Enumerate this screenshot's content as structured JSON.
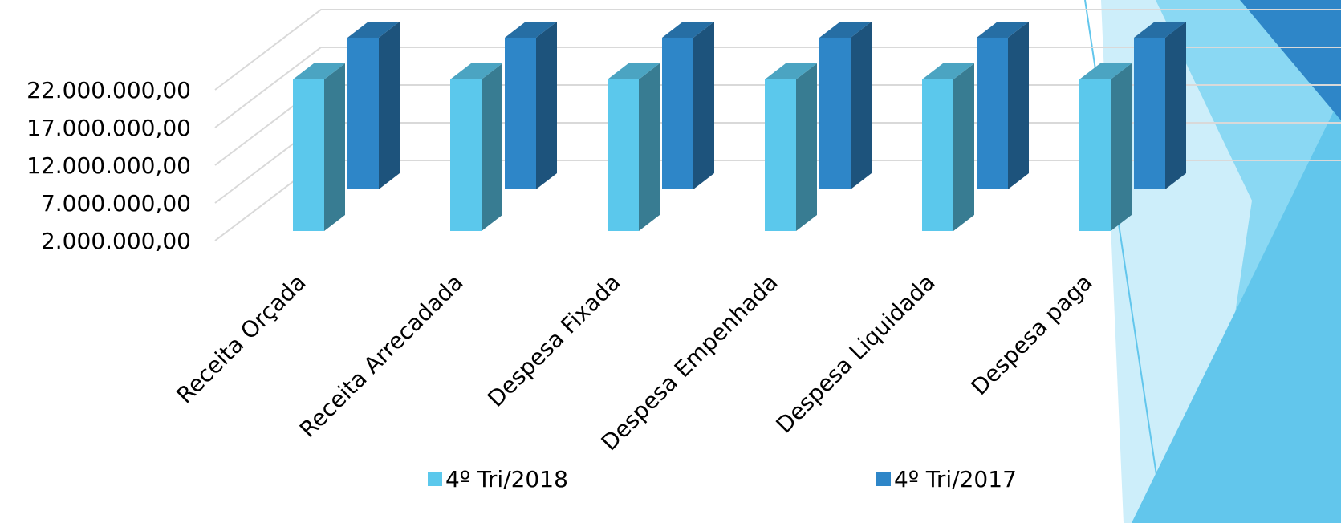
{
  "chart_data": {
    "type": "bar3d",
    "categories": [
      "Receita Orçada",
      "Receita Arrecadada",
      "Despesa Fixada",
      "Despesa Empenhada",
      "Despesa Liquidada",
      "Despesa paga"
    ],
    "series": [
      {
        "name": "4º Tri/2018",
        "color": "#5bc8ec",
        "values": [
          21900000,
          21900000,
          21900000,
          21900000,
          21900000,
          21900000
        ]
      },
      {
        "name": "4º Tri/2017",
        "color": "#2e86c8",
        "values": [
          21900000,
          21900000,
          21900000,
          21900000,
          21900000,
          21900000
        ]
      }
    ],
    "ylim": [
      2000000,
      22000000
    ],
    "yticks": [
      {
        "value": 2000000,
        "label": "2.000.000,00"
      },
      {
        "value": 7000000,
        "label": "7.000.000,00"
      },
      {
        "value": 12000000,
        "label": "12.000.000,00"
      },
      {
        "value": 17000000,
        "label": "17.000.000,00"
      },
      {
        "value": 22000000,
        "label": "22.000.000,00"
      }
    ],
    "grid": true
  }
}
